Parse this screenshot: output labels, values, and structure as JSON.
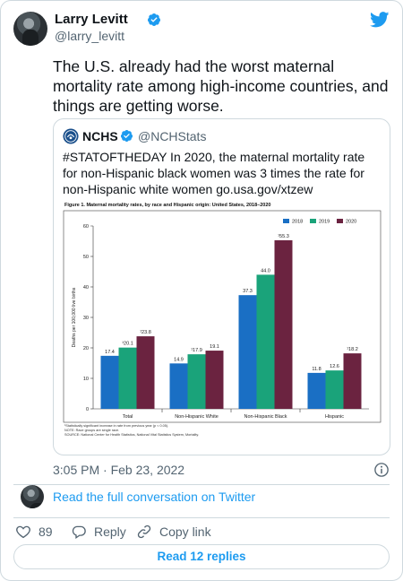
{
  "author": {
    "name": "Larry Levitt",
    "handle": "@larry_levitt"
  },
  "tweet_text": "The U.S. already had the worst maternal mortality rate among high-income countries, and things are getting worse.",
  "quoted": {
    "name": "NCHS",
    "handle": "@NCHStats",
    "text": "#STATOFTHEDAY In 2020, the maternal mortality rate for non-Hispanic black women was 3 times the rate for non-Hispanic white women go.usa.gov/xtzew"
  },
  "figure": {
    "title": "Figure 1. Maternal mortality rates, by race and Hispanic origin: United States, 2018–2020",
    "notes": [
      "¹Statistically significant increase in rate from previous year (p < 0.05).",
      "NOTE: Race groups are single race.",
      "SOURCE: National Center for Health Statistics, National Vital Statistics System, Mortality."
    ]
  },
  "chart_data": {
    "type": "bar",
    "title": "Figure 1. Maternal mortality rates, by race and Hispanic origin: United States, 2018–2020",
    "ylabel": "Deaths per 100,000 live births",
    "ylim": [
      0,
      60
    ],
    "yticks": [
      0,
      10,
      20,
      30,
      40,
      50,
      60
    ],
    "categories": [
      "Total",
      "Non-Hispanic White",
      "Non-Hispanic Black",
      "Hispanic"
    ],
    "series": [
      {
        "name": "2018",
        "color": "#1a6fc4",
        "values": [
          17.4,
          14.9,
          37.3,
          11.8
        ],
        "labels": [
          "17.4",
          "14.9",
          "37.3",
          "11.8"
        ]
      },
      {
        "name": "2019",
        "color": "#1aa37a",
        "values": [
          20.1,
          17.9,
          44.0,
          12.6
        ],
        "labels": [
          "¹20.1",
          "¹17.9",
          "44.0",
          "12.6"
        ]
      },
      {
        "name": "2020",
        "color": "#6b2340",
        "values": [
          23.8,
          19.1,
          55.3,
          18.2
        ],
        "labels": [
          "¹23.8",
          "19.1",
          "¹55.3",
          "¹18.2"
        ]
      }
    ],
    "legend_position": "top-right",
    "grid": false
  },
  "timestamp": "3:05 PM · Feb 23, 2022",
  "conversation_link": "Read the full conversation on Twitter",
  "actions": {
    "likes": "89",
    "reply": "Reply",
    "copy_link": "Copy link"
  },
  "read_replies": "Read 12 replies",
  "colors": {
    "twitter_blue": "#1d9bf0",
    "secondary_text": "#536471",
    "border": "#cfd9de"
  }
}
